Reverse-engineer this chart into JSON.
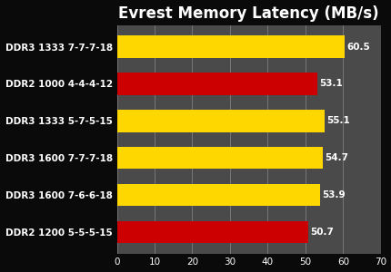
{
  "title": "Evrest Memory Latency (MB/s)",
  "categories": [
    "DDR3 1333 7-7-7-18",
    "DDR2 1000 4-4-4-12",
    "DDR3 1333 5-7-5-15",
    "DDR3 1600 7-7-7-18",
    "DDR3 1600 7-6-6-18",
    "DDR2 1200 5-5-5-15"
  ],
  "values": [
    60.5,
    53.1,
    55.1,
    54.7,
    53.9,
    50.7
  ],
  "bar_colors": [
    "#FFD700",
    "#CC0000",
    "#FFD700",
    "#FFD700",
    "#FFD700",
    "#CC0000"
  ],
  "xlim": [
    0,
    70
  ],
  "xticks": [
    0,
    10,
    20,
    30,
    40,
    50,
    60,
    70
  ],
  "background_color": "#0a0a0a",
  "plot_bg_color": "#4a4a4a",
  "title_color": "#ffffff",
  "label_color": "#ffffff",
  "tick_color": "#ffffff",
  "value_color": "#ffffff",
  "title_fontsize": 12,
  "label_fontsize": 7.5,
  "value_fontsize": 7.5
}
